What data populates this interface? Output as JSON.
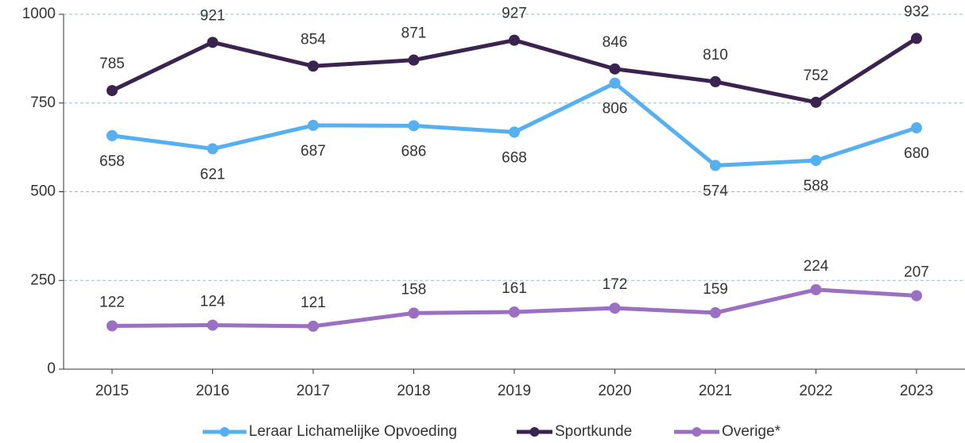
{
  "chart_data": {
    "type": "line",
    "categories": [
      "2015",
      "2016",
      "2017",
      "2018",
      "2019",
      "2020",
      "2021",
      "2022",
      "2023"
    ],
    "series": [
      {
        "name": "Leraar Lichamelijke Opvoeding",
        "color": "#56b0f0",
        "values": [
          658,
          621,
          687,
          686,
          668,
          806,
          574,
          588,
          680
        ]
      },
      {
        "name": "Sportkunde",
        "color": "#3b2350",
        "values": [
          785,
          921,
          854,
          871,
          927,
          846,
          810,
          752,
          932
        ]
      },
      {
        "name": "Overige*",
        "color": "#9b6fc2",
        "values": [
          122,
          124,
          121,
          158,
          161,
          172,
          159,
          224,
          207
        ]
      }
    ],
    "ylim": [
      0,
      1000
    ],
    "yticks": [
      0,
      250,
      500,
      750,
      1000
    ],
    "grid": true,
    "legend": "bottom"
  }
}
